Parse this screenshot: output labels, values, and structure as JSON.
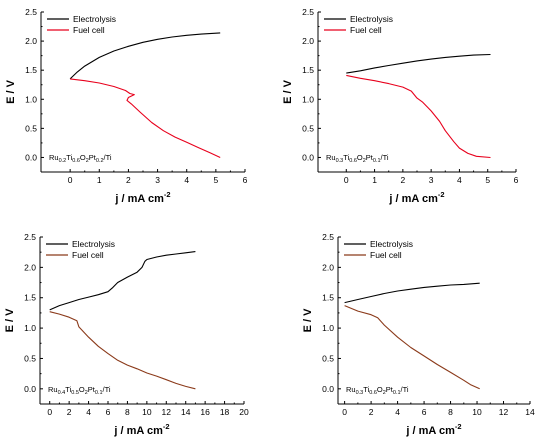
{
  "chart_data": [
    {
      "type": "line",
      "xlabel": "j / mA cm",
      "xlabel_sup": "-2",
      "ylabel": "E / V",
      "xlim": [
        -1,
        6
      ],
      "ylim": [
        -0.25,
        2.5
      ],
      "xticks": [
        "0",
        "1",
        "2",
        "3",
        "4",
        "5",
        "6"
      ],
      "yticks": [
        "0.0",
        "0.5",
        "1.0",
        "1.5",
        "2.0",
        "2.5"
      ],
      "legend_position": "top-left",
      "sample_label": [
        {
          "t": "Ru"
        },
        {
          "t": "0.2",
          "sub": true
        },
        {
          "t": "Ti"
        },
        {
          "t": "0.6",
          "sub": true
        },
        {
          "t": "O"
        },
        {
          "t": "2",
          "sub": true
        },
        {
          "t": "Pt"
        },
        {
          "t": "0.2",
          "sub": true
        },
        {
          "t": "/Ti"
        }
      ],
      "series": [
        {
          "name": "Electrolysis",
          "color": "#000000",
          "x": [
            0,
            0.1,
            0.25,
            0.5,
            1.0,
            1.5,
            2.0,
            2.5,
            3.0,
            3.5,
            4.0,
            4.5,
            5.15
          ],
          "y": [
            1.35,
            1.4,
            1.47,
            1.57,
            1.72,
            1.83,
            1.91,
            1.98,
            2.03,
            2.07,
            2.1,
            2.12,
            2.14
          ]
        },
        {
          "name": "Fuel cell",
          "color": "#e8001c",
          "x": [
            0,
            0.5,
            1.0,
            1.5,
            1.9,
            2.05,
            2.2,
            2.0,
            1.95,
            2.1,
            2.4,
            2.8,
            3.2,
            3.6,
            4.0,
            4.4,
            4.8,
            5.15
          ],
          "y": [
            1.35,
            1.32,
            1.28,
            1.22,
            1.15,
            1.1,
            1.08,
            1.03,
            0.98,
            0.92,
            0.78,
            0.6,
            0.46,
            0.35,
            0.26,
            0.17,
            0.08,
            0.0
          ]
        }
      ]
    },
    {
      "type": "line",
      "xlabel": "j / mA cm",
      "xlabel_sup": "-2",
      "ylabel": "E / V",
      "xlim": [
        -1,
        6
      ],
      "ylim": [
        -0.25,
        2.5
      ],
      "xticks": [
        "0",
        "1",
        "2",
        "3",
        "4",
        "5",
        "6"
      ],
      "yticks": [
        "0.0",
        "0.5",
        "1.0",
        "1.5",
        "2.0",
        "2.5"
      ],
      "legend_position": "top-left",
      "sample_label": [
        {
          "t": "Ru"
        },
        {
          "t": "0.3",
          "sub": true
        },
        {
          "t": "Ti"
        },
        {
          "t": "0.6",
          "sub": true
        },
        {
          "t": "O"
        },
        {
          "t": "2",
          "sub": true
        },
        {
          "t": "Pt"
        },
        {
          "t": "0.1",
          "sub": true
        },
        {
          "t": "/Ti"
        }
      ],
      "series": [
        {
          "name": "Electrolysis",
          "color": "#000000",
          "x": [
            0,
            0.5,
            1.0,
            1.5,
            2.0,
            2.5,
            3.0,
            3.5,
            4.0,
            4.5,
            5.1
          ],
          "y": [
            1.45,
            1.49,
            1.54,
            1.58,
            1.62,
            1.66,
            1.69,
            1.72,
            1.74,
            1.76,
            1.77
          ]
        },
        {
          "name": "Fuel cell",
          "color": "#e8001c",
          "x": [
            0,
            0.5,
            1.0,
            1.5,
            2.0,
            2.3,
            2.5,
            2.7,
            3.0,
            3.3,
            3.5,
            3.8,
            4.0,
            4.3,
            4.6,
            5.1
          ],
          "y": [
            1.41,
            1.36,
            1.32,
            1.27,
            1.21,
            1.14,
            1.02,
            0.95,
            0.8,
            0.62,
            0.46,
            0.27,
            0.16,
            0.07,
            0.02,
            0.0
          ]
        }
      ]
    },
    {
      "type": "line",
      "xlabel": "j / mA cm",
      "xlabel_sup": "-2",
      "ylabel": "E / V",
      "xlim": [
        -1,
        20
      ],
      "ylim": [
        -0.25,
        2.5
      ],
      "xticks": [
        "0",
        "2",
        "4",
        "6",
        "8",
        "10",
        "12",
        "14",
        "16",
        "18",
        "20"
      ],
      "yticks": [
        "0.0",
        "0.5",
        "1.0",
        "1.5",
        "2.0",
        "2.5"
      ],
      "legend_position": "top-left",
      "sample_label": [
        {
          "t": "Ru"
        },
        {
          "t": "0.4",
          "sub": true
        },
        {
          "t": "Ti"
        },
        {
          "t": "0.5",
          "sub": true
        },
        {
          "t": "O"
        },
        {
          "t": "2",
          "sub": true
        },
        {
          "t": "Pt"
        },
        {
          "t": "0.1",
          "sub": true
        },
        {
          "t": "/Ti"
        }
      ],
      "series": [
        {
          "name": "Electrolysis",
          "color": "#000000",
          "x": [
            0,
            1,
            2,
            3,
            4,
            5,
            6,
            6.5,
            7,
            8,
            9,
            9.5,
            9.8,
            10,
            11,
            12,
            13,
            14,
            15
          ],
          "y": [
            1.3,
            1.37,
            1.42,
            1.47,
            1.51,
            1.55,
            1.6,
            1.67,
            1.75,
            1.84,
            1.92,
            2.0,
            2.1,
            2.13,
            2.17,
            2.2,
            2.22,
            2.24,
            2.26
          ]
        },
        {
          "name": "Fuel cell",
          "color": "#8b3a1a",
          "x": [
            0,
            1,
            2,
            2.8,
            3.0,
            4,
            5,
            6,
            7,
            8,
            9,
            10,
            11,
            12,
            13,
            14,
            15
          ],
          "y": [
            1.27,
            1.23,
            1.18,
            1.12,
            1.02,
            0.85,
            0.7,
            0.58,
            0.47,
            0.39,
            0.33,
            0.26,
            0.21,
            0.15,
            0.09,
            0.04,
            0.0
          ]
        }
      ]
    },
    {
      "type": "line",
      "xlabel": "j / mA cm",
      "xlabel_sup": "-2",
      "ylabel": "E / V",
      "xlim": [
        -0.5,
        14
      ],
      "ylim": [
        -0.25,
        2.5
      ],
      "xticks": [
        "0",
        "2",
        "4",
        "6",
        "8",
        "10",
        "12",
        "14"
      ],
      "yticks": [
        "0.0",
        "0.5",
        "1.0",
        "1.5",
        "2.0",
        "2.5"
      ],
      "legend_position": "top-left",
      "sample_label": [
        {
          "t": "Ru"
        },
        {
          "t": "0.3",
          "sub": true
        },
        {
          "t": "Ti"
        },
        {
          "t": "0.6",
          "sub": true
        },
        {
          "t": "O"
        },
        {
          "t": "2",
          "sub": true
        },
        {
          "t": "Pt"
        },
        {
          "t": "0.1",
          "sub": true
        },
        {
          "t": "/Ti"
        }
      ],
      "series": [
        {
          "name": "Electrolysis",
          "color": "#000000",
          "x": [
            0,
            1,
            2,
            3,
            4,
            5,
            6,
            7,
            8,
            9,
            10.2
          ],
          "y": [
            1.42,
            1.47,
            1.52,
            1.57,
            1.61,
            1.64,
            1.67,
            1.69,
            1.71,
            1.72,
            1.74
          ]
        },
        {
          "name": "Fuel cell",
          "color": "#8b3a1a",
          "x": [
            0,
            1,
            2,
            2.5,
            3,
            4,
            5,
            6,
            7,
            8,
            9,
            9.5,
            10.2
          ],
          "y": [
            1.37,
            1.28,
            1.22,
            1.17,
            1.05,
            0.85,
            0.68,
            0.54,
            0.4,
            0.27,
            0.14,
            0.07,
            0.0
          ]
        }
      ]
    }
  ]
}
